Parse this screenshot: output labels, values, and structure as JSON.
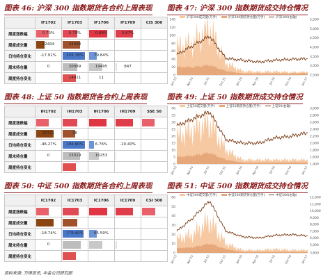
{
  "panels": [
    {
      "title": "图表 46: 沪深 300 指数期货各合约上周表现",
      "headers": [
        "",
        "IF1702",
        "IF1703",
        "IF1706",
        "IF1709",
        "CIS 300"
      ],
      "rows": [
        {
          "label": "周度涨跌幅",
          "cells": [
            "0.73%",
            "0.79%",
            "0.88%",
            "0.87%",
            ""
          ],
          "kind": "pct"
        },
        {
          "label": "周度成交量",
          "cells": [
            "22404",
            "44498",
            "",
            "",
            ""
          ],
          "kind": "vol"
        },
        {
          "label": "日均持仓变化",
          "cells": [
            "-17.91%",
            "255.78%",
            "79.84%",
            "",
            ""
          ],
          "kind": "chg"
        },
        {
          "label": "周末持仓量",
          "cells": [
            "0",
            "20089",
            "19495",
            "847",
            ""
          ],
          "kind": "oi"
        },
        {
          "label": "周度持仓变化",
          "cells": [
            "",
            "14911",
            "11",
            "",
            ""
          ],
          "kind": "oichg"
        }
      ],
      "colors": [
        [
          "#e8606a",
          "#e14a55",
          "#e03643",
          "#e03d4a",
          ""
        ],
        [
          "#8b4513",
          "#a0522d",
          "#ffffff",
          "#ffffff",
          ""
        ],
        [
          "#ffffff",
          "#4a78c8",
          "#6d93d6",
          "#ffffff",
          ""
        ],
        [
          "#ffffff",
          "#bdbdbd",
          "#c8c8c8",
          "#e0e0e0",
          ""
        ],
        [
          "#ffffff",
          "#e05050",
          "#ffffff",
          "#ffffff",
          ""
        ]
      ],
      "fills": [
        [
          0.5,
          0.6,
          0.75,
          0.72,
          0
        ],
        [
          0.35,
          0.7,
          0,
          0,
          0
        ],
        [
          0,
          0.9,
          0.3,
          0,
          0
        ],
        [
          0,
          0.6,
          0.55,
          0.05,
          0
        ],
        [
          0,
          0.55,
          0.02,
          0,
          0
        ]
      ]
    },
    {
      "title": "图表 48: 上证 50 指数期货各合约上周表现",
      "headers": [
        "",
        "IH1702",
        "IH1703",
        "IH1706",
        "IH1709",
        "SSE 50"
      ],
      "rows": [
        {
          "label": "周度涨跌幅",
          "cells": [
            "",
            "",
            "",
            "",
            ""
          ],
          "kind": "pct"
        },
        {
          "label": "周度成交量",
          "cells": [
            "20721",
            "26",
            "",
            "",
            ""
          ],
          "kind": "vol"
        },
        {
          "label": "日均持仓变化",
          "cells": [
            "-46.27%",
            "194.60%",
            "6.76%",
            "-10.40%",
            ""
          ],
          "kind": "chg"
        },
        {
          "label": "周末持仓量",
          "cells": [
            "0",
            "23319",
            "10253",
            "",
            ""
          ],
          "kind": "oi"
        },
        {
          "label": "周度持仓变化",
          "cells": [
            "",
            "",
            "",
            "",
            ""
          ],
          "kind": "oichg"
        }
      ],
      "colors": [
        [
          "#e8606a",
          "#e14a55",
          "#e03643",
          "#e03d4a",
          "#e8606a"
        ],
        [
          "#8b4513",
          "#a0522d",
          "#ffffff",
          "#ffffff",
          ""
        ],
        [
          "#ffffff",
          "#4a78c8",
          "#6d93d6",
          "#ffffff",
          ""
        ],
        [
          "#ffffff",
          "#bdbdbd",
          "#c8c8c8",
          "#e0e0e0",
          ""
        ],
        [
          "#ffffff",
          "#e05050",
          "#ffffff",
          "#ffffff",
          ""
        ]
      ],
      "fills": [
        [
          0.5,
          0.6,
          0.7,
          0.7,
          0.5
        ],
        [
          0.7,
          0.5,
          0.15,
          0,
          0
        ],
        [
          0,
          0.9,
          0.2,
          0,
          0
        ],
        [
          0,
          0.7,
          0.4,
          0.03,
          0
        ],
        [
          0,
          0.55,
          0.2,
          0,
          0
        ]
      ]
    },
    {
      "title": "图表 50: 中证 500 指数期货各合约上周表现",
      "headers": [
        "",
        "IC1702",
        "IC1703",
        "IC1706",
        "IC1709",
        "CSI 500"
      ],
      "rows": [
        {
          "label": "周度涨跌幅",
          "cells": [
            "",
            "",
            "",
            "",
            ""
          ],
          "kind": "pct"
        },
        {
          "label": "周度成交量",
          "cells": [
            "",
            "",
            "",
            "",
            ""
          ],
          "kind": "vol"
        },
        {
          "label": "日均持仓变化",
          "cells": [
            "-18.74%",
            "179.40%",
            "65.59%",
            "",
            ""
          ],
          "kind": "chg"
        },
        {
          "label": "周末持仓量",
          "cells": [
            "0",
            "",
            "",
            "",
            ""
          ],
          "kind": "oi"
        },
        {
          "label": "周度持仓变化",
          "cells": [
            "",
            "",
            "",
            "",
            ""
          ],
          "kind": "oichg"
        }
      ],
      "colors": [
        [
          "#e8606a",
          "#e14a55",
          "#e03643",
          "#e03d4a",
          "#e8606a"
        ],
        [
          "#8b4513",
          "#a0522d",
          "#ffffff",
          "#ffffff",
          ""
        ],
        [
          "#ffffff",
          "#4a78c8",
          "#6d93d6",
          "#ffffff",
          ""
        ],
        [
          "#ffffff",
          "#bdbdbd",
          "#c8c8c8",
          "#e0e0e0",
          ""
        ],
        [
          "#ffffff",
          "#e05050",
          "#ffffff",
          "#ffffff",
          ""
        ]
      ],
      "fills": [
        [
          0.5,
          0.65,
          0.75,
          0.7,
          0.55
        ],
        [
          0.7,
          0.6,
          0.3,
          0,
          0
        ],
        [
          0,
          0.85,
          0.3,
          0,
          0
        ],
        [
          0,
          0.75,
          0.55,
          0.05,
          0
        ],
        [
          0,
          0.55,
          0.02,
          0,
          0
        ]
      ]
    }
  ],
  "charts_meta": [
    {
      "title": "图表 47: 沪深 300 指数期货成交持仓情况",
      "legend": [
        "沪深300成交量(万手)",
        "沪深300期货持仓量(万手)",
        "沪深300(右轴)"
      ]
    },
    {
      "title": "图表 49: 上证 50 指数期货成交持仓情况",
      "legend": [
        "上证50成交量(万手)",
        "上证50期货持仓量(万手)",
        "上证50(右轴)"
      ]
    },
    {
      "title": "图表 51: 中证 500 指数期货成交持仓情况",
      "legend": [
        "中证500成交量(万手)",
        "中证500期货持仓量(万手)",
        "中证500(右轴)"
      ]
    }
  ],
  "chart_data": [
    {
      "type": "area",
      "title": "图表 47: 沪深 300 指数期货成交持仓情况",
      "x": [
        "Jan-15",
        "Apr-15",
        "Jul-15",
        "Oct-15",
        "Jan-16",
        "Apr-16",
        "Jul-16",
        "Oct-16",
        "Jan-17"
      ],
      "y_left_ticks": [
        0,
        20,
        40,
        60,
        80,
        100,
        120,
        140
      ],
      "y_right_ticks": [
        2500,
        3000,
        3500,
        4000,
        4500,
        5000,
        5500
      ],
      "ylim_left": [
        0,
        140
      ],
      "ylim_right": [
        2500,
        5500
      ],
      "series": [
        {
          "name": "沪深300成交量(万手)",
          "values": [
            70,
            80,
            120,
            30,
            10,
            8,
            9,
            7,
            8
          ]
        },
        {
          "name": "沪深300期货持仓量(万手)",
          "values": [
            20,
            20,
            25,
            10,
            4,
            4,
            4,
            4,
            5
          ]
        },
        {
          "name": "沪深300(右轴)",
          "values": [
            3600,
            4100,
            4600,
            3400,
            3300,
            3200,
            3300,
            3350,
            3380
          ]
        }
      ]
    },
    {
      "type": "area",
      "title": "图表 49: 上证 50 指数期货成交持仓情况",
      "x": [
        "Jan-15",
        "Apr-15",
        "Jul-15",
        "Oct-15",
        "Jan-16",
        "Apr-16",
        "Jul-16",
        "Oct-16",
        "Jan-17"
      ],
      "y_left_ticks": [
        0,
        5,
        10,
        15,
        20,
        25,
        30,
        35,
        40
      ],
      "y_right_ticks": [
        1400,
        1600,
        1800,
        2000,
        2200,
        2400,
        2600,
        2800,
        3000
      ],
      "ylim_left": [
        0,
        40
      ],
      "ylim_right": [
        1400,
        3000
      ],
      "series": [
        {
          "name": "上证50成交量(万手)",
          "values": [
            20,
            25,
            30,
            10,
            3,
            3,
            3,
            3,
            3
          ]
        },
        {
          "name": "上证50期货持仓量(万手)",
          "values": [
            5,
            6,
            8,
            3,
            1,
            1,
            1,
            1,
            1
          ]
        },
        {
          "name": "上证50(右轴)",
          "values": [
            2500,
            2700,
            2900,
            2100,
            2000,
            2000,
            2150,
            2200,
            2300
          ]
        }
      ]
    },
    {
      "type": "area",
      "title": "图表 51: 中证 500 指数期货成交持仓情况",
      "x": [
        "Jan-15",
        "Apr-15",
        "Jul-15",
        "Oct-15",
        "Jan-16",
        "Apr-16",
        "Jul-16",
        "Oct-16",
        "Jan-17"
      ],
      "y_left_ticks": [
        0,
        10,
        20,
        30,
        40,
        50,
        60
      ],
      "y_right_ticks": [
        3800,
        5000,
        6000,
        7000,
        8000,
        9000,
        10000,
        11000,
        12000
      ],
      "ylim_left": [
        0,
        60
      ],
      "ylim_right": [
        3800,
        12000
      ],
      "series": [
        {
          "name": "中证500成交量(万手)",
          "values": [
            15,
            20,
            35,
            10,
            3,
            3,
            4,
            3,
            3
          ]
        },
        {
          "name": "中证500期货持仓量(万手)",
          "values": [
            5,
            6,
            10,
            4,
            1,
            1,
            1,
            1,
            1
          ]
        },
        {
          "name": "中证500(右轴)",
          "values": [
            7000,
            9000,
            11500,
            7000,
            6200,
            6000,
            6400,
            6500,
            6300
          ]
        }
      ]
    }
  ],
  "footer": "资料来源: 万得资讯, 中金公司研究部"
}
